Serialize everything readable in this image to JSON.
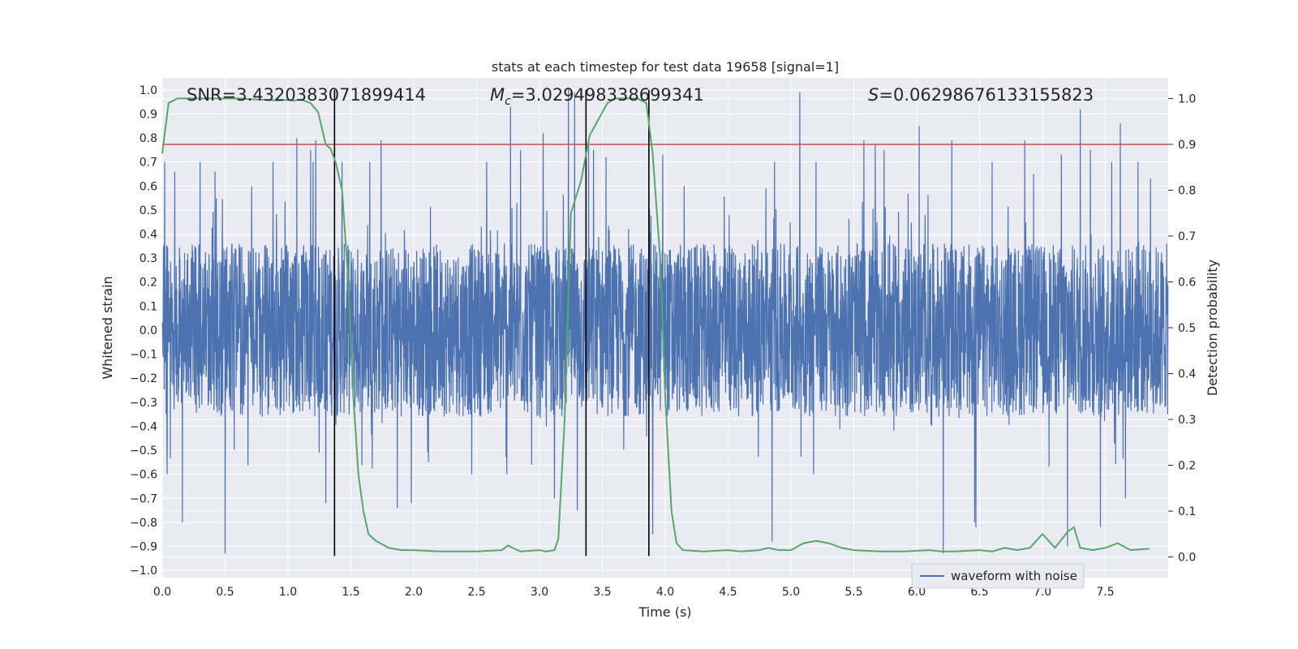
{
  "chart_data": {
    "type": "line",
    "title": "stats at each timestep for test data 19658 [signal=1]",
    "xlabel": "Time (s)",
    "ylabel": "Whitened strain",
    "y2label": "Detection probability",
    "xlim": [
      0.0,
      8.0
    ],
    "ylim": [
      -1.03,
      1.05
    ],
    "y2lim": [
      -0.045,
      1.045
    ],
    "xticks": [
      "0.0",
      "0.5",
      "1.0",
      "1.5",
      "2.0",
      "2.5",
      "3.0",
      "3.5",
      "4.0",
      "4.5",
      "5.0",
      "5.5",
      "6.0",
      "6.5",
      "7.0",
      "7.5"
    ],
    "yticks": [
      "1.0",
      "0.9",
      "0.8",
      "0.7",
      "0.6",
      "0.5",
      "0.4",
      "0.3",
      "0.2",
      "0.1",
      "0.0",
      "−0.1",
      "−0.2",
      "−0.3",
      "−0.4",
      "−0.5",
      "−0.6",
      "−0.7",
      "−0.8",
      "−0.9",
      "−1.0"
    ],
    "y2ticks": [
      "1.0",
      "0.9",
      "0.8",
      "0.7",
      "0.6",
      "0.5",
      "0.4",
      "0.3",
      "0.2",
      "0.1",
      "0.0"
    ],
    "grid": true,
    "legend": "bottom-right",
    "annotations": {
      "snr": "SNR=3.4320383071899414",
      "mc_symbol": "M",
      "mc_sub": "c",
      "mc_value": "=3.029498338699341",
      "s_symbol": "S",
      "s_value": "=0.06298676133155823"
    },
    "threshold": {
      "y2": 0.9,
      "color": "#c44e52"
    },
    "vertical_lines": [
      1.37,
      3.37,
      3.87
    ],
    "series": [
      {
        "name": "waveform with noise",
        "axis": "left",
        "color": "#4c72b0",
        "kind": "noise",
        "sample_rate": 512,
        "envelope": 0.36,
        "peaks": [
          [
            0.02,
            0.7
          ],
          [
            0.04,
            -0.6
          ],
          [
            0.5,
            -0.93
          ],
          [
            0.16,
            -0.8
          ],
          [
            0.1,
            0.66
          ],
          [
            0.3,
            0.7
          ],
          [
            0.42,
            0.66
          ],
          [
            0.71,
            0.6
          ],
          [
            0.88,
            0.7
          ],
          [
            1.22,
            0.79
          ],
          [
            1.07,
            0.8
          ],
          [
            1.18,
            0.75
          ],
          [
            1.3,
            -0.72
          ],
          [
            1.2,
            0.7
          ],
          [
            1.43,
            0.7
          ],
          [
            1.65,
            0.7
          ],
          [
            1.74,
            0.79
          ],
          [
            1.87,
            -0.74
          ],
          [
            1.98,
            -0.72
          ],
          [
            2.46,
            -0.6
          ],
          [
            2.58,
            0.7
          ],
          [
            2.74,
            -0.6
          ],
          [
            2.77,
            0.93
          ],
          [
            2.85,
            0.75
          ],
          [
            3.03,
            0.82
          ],
          [
            3.12,
            -0.7
          ],
          [
            3.23,
            1.01
          ],
          [
            3.28,
            0.99
          ],
          [
            3.3,
            -0.75
          ],
          [
            3.39,
            0.8
          ],
          [
            3.43,
            0.75
          ],
          [
            3.53,
            0.72
          ],
          [
            3.9,
            -0.85
          ],
          [
            3.98,
            0.73
          ],
          [
            4.15,
            0.6
          ],
          [
            4.8,
            0.59
          ],
          [
            4.85,
            -0.88
          ],
          [
            4.87,
            0.7
          ],
          [
            5.07,
            0.99
          ],
          [
            5.18,
            -0.6
          ],
          [
            5.2,
            0.7
          ],
          [
            5.58,
            0.79
          ],
          [
            5.67,
            0.77
          ],
          [
            5.74,
            0.75
          ],
          [
            6.02,
            0.85
          ],
          [
            6.21,
            -0.93
          ],
          [
            6.28,
            0.79
          ],
          [
            6.46,
            -0.8
          ],
          [
            6.47,
            -0.82
          ],
          [
            6.6,
            0.7
          ],
          [
            6.86,
            0.79
          ],
          [
            6.93,
            0.65
          ],
          [
            7.15,
            0.73
          ],
          [
            7.2,
            -0.9
          ],
          [
            7.3,
            0.92
          ],
          [
            7.38,
            0.75
          ],
          [
            7.46,
            -0.82
          ],
          [
            7.55,
            0.7
          ],
          [
            7.62,
            0.86
          ],
          [
            7.66,
            -0.7
          ],
          [
            7.76,
            0.7
          ],
          [
            7.86,
            0.63
          ]
        ]
      },
      {
        "name": "detection probability",
        "axis": "right",
        "color": "#55a868",
        "x": [
          0.0,
          0.05,
          0.12,
          0.3,
          0.6,
          0.9,
          1.0,
          1.05,
          1.1,
          1.18,
          1.24,
          1.3,
          1.34,
          1.38,
          1.43,
          1.48,
          1.52,
          1.56,
          1.6,
          1.64,
          1.7,
          1.8,
          1.9,
          2.0,
          2.2,
          2.5,
          2.7,
          2.75,
          2.8,
          2.85,
          3.0,
          3.05,
          3.12,
          3.15,
          3.2,
          3.25,
          3.33,
          3.4,
          3.48,
          3.54,
          3.6,
          3.7,
          3.78,
          3.85,
          3.9,
          3.96,
          4.0,
          4.05,
          4.09,
          4.14,
          4.3,
          4.5,
          4.6,
          4.75,
          4.82,
          4.9,
          5.0,
          5.1,
          5.2,
          5.3,
          5.4,
          5.5,
          5.7,
          5.9,
          6.1,
          6.2,
          6.3,
          6.5,
          6.6,
          6.7,
          6.8,
          6.9,
          7.0,
          7.1,
          7.2,
          7.25,
          7.3,
          7.4,
          7.5,
          7.6,
          7.7,
          7.85
        ],
        "y": [
          0.88,
          0.99,
          1.0,
          1.0,
          1.0,
          0.996,
          0.997,
          0.995,
          0.998,
          0.99,
          0.97,
          0.9,
          0.89,
          0.86,
          0.8,
          0.6,
          0.35,
          0.18,
          0.1,
          0.05,
          0.035,
          0.02,
          0.015,
          0.015,
          0.012,
          0.012,
          0.015,
          0.025,
          0.018,
          0.012,
          0.015,
          0.012,
          0.015,
          0.04,
          0.3,
          0.75,
          0.82,
          0.92,
          0.96,
          0.99,
          1.0,
          1.0,
          1.0,
          0.99,
          0.88,
          0.65,
          0.35,
          0.1,
          0.03,
          0.015,
          0.012,
          0.015,
          0.012,
          0.015,
          0.02,
          0.015,
          0.015,
          0.03,
          0.035,
          0.03,
          0.02,
          0.015,
          0.012,
          0.012,
          0.015,
          0.012,
          0.012,
          0.015,
          0.012,
          0.02,
          0.015,
          0.02,
          0.05,
          0.02,
          0.055,
          0.065,
          0.02,
          0.015,
          0.02,
          0.03,
          0.015,
          0.018
        ]
      }
    ]
  }
}
